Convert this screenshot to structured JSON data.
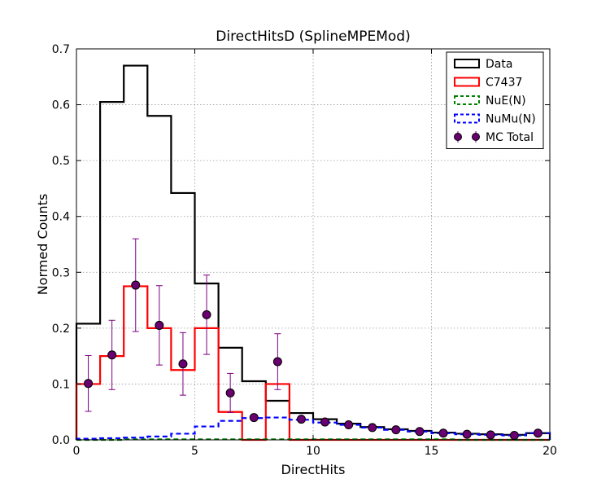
{
  "chart_data": {
    "type": "histogram",
    "title": "DirectHitsD (SplineMPEMod)",
    "xlabel": "DirectHits",
    "ylabel": "Normed Counts",
    "xlim": [
      0,
      20
    ],
    "ylim": [
      0,
      0.7
    ],
    "xticks": [
      0,
      5,
      10,
      15,
      20
    ],
    "yticks": [
      0.0,
      0.1,
      0.2,
      0.3,
      0.4,
      0.5,
      0.6,
      0.7
    ],
    "ytick_labels": [
      "0.0",
      "0.1",
      "0.2",
      "0.3",
      "0.4",
      "0.5",
      "0.6",
      "0.7"
    ],
    "grid": true,
    "legend_position": "top-right",
    "bin_edges": [
      0,
      1,
      2,
      3,
      4,
      5,
      6,
      7,
      8,
      9,
      10,
      11,
      12,
      13,
      14,
      15,
      16,
      17,
      18,
      19,
      20
    ],
    "series": [
      {
        "name": "Data",
        "style": "step",
        "color": "#000000",
        "dashed": false,
        "values": [
          0.208,
          0.605,
          0.67,
          0.58,
          0.442,
          0.28,
          0.165,
          0.105,
          0.07,
          0.048,
          0.037,
          0.029,
          0.023,
          0.019,
          0.016,
          0.013,
          0.011,
          0.01,
          0.009,
          0.012
        ]
      },
      {
        "name": "C7437",
        "style": "step",
        "color": "#ff0000",
        "dashed": false,
        "values": [
          0.1,
          0.15,
          0.275,
          0.2,
          0.125,
          0.2,
          0.05,
          0.0,
          0.1,
          0.0,
          0.0,
          0.0,
          0.0,
          0.0,
          0.0,
          0.0,
          0.0,
          0.0,
          0.0,
          0.0
        ]
      },
      {
        "name": "NuE(N)",
        "style": "step",
        "color": "#008000",
        "dashed": true,
        "values": [
          0.0,
          0.0,
          0.001,
          0.001,
          0.001,
          0.001,
          0.001,
          0.001,
          0.001,
          0.001,
          0.001,
          0.001,
          0.001,
          0.001,
          0.001,
          0.001,
          0.0,
          0.0,
          0.0,
          0.0
        ]
      },
      {
        "name": "NuMu(N)",
        "style": "step",
        "color": "#0000ff",
        "dashed": true,
        "values": [
          0.002,
          0.003,
          0.004,
          0.006,
          0.011,
          0.024,
          0.034,
          0.039,
          0.04,
          0.036,
          0.031,
          0.027,
          0.022,
          0.018,
          0.015,
          0.012,
          0.01,
          0.009,
          0.008,
          0.012
        ]
      },
      {
        "name": "MC Total",
        "style": "errorbar",
        "color": "#7b0080",
        "marker_color": "#6a006f",
        "x": [
          0.5,
          1.5,
          2.5,
          3.5,
          4.5,
          5.5,
          6.5,
          7.5,
          8.5,
          9.5,
          10.5,
          11.5,
          12.5,
          13.5,
          14.5,
          15.5,
          16.5,
          17.5,
          18.5,
          19.5
        ],
        "values": [
          0.101,
          0.152,
          0.277,
          0.205,
          0.136,
          0.224,
          0.084,
          0.04,
          0.14,
          0.037,
          0.032,
          0.027,
          0.022,
          0.018,
          0.015,
          0.012,
          0.01,
          0.009,
          0.008,
          0.012
        ],
        "errors": [
          0.05,
          0.062,
          0.083,
          0.071,
          0.056,
          0.071,
          0.035,
          0.004,
          0.05,
          0.002,
          0.002,
          0.002,
          0.001,
          0.001,
          0.001,
          0.001,
          0.001,
          0.001,
          0.001,
          0.001
        ]
      }
    ]
  }
}
